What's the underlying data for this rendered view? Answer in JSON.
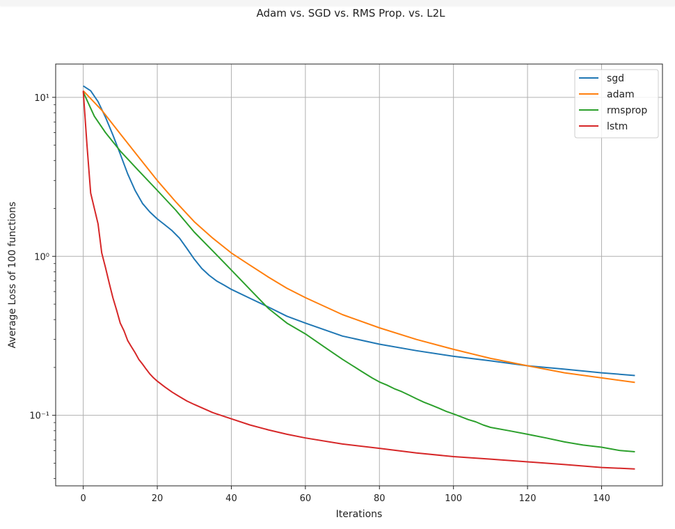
{
  "title": "Adam vs. SGD vs. RMS Prop. vs. L2L",
  "chart_data": {
    "type": "line",
    "title": "Adam vs. SGD vs. RMS Prop. vs. L2L",
    "xlabel": "Iterations",
    "ylabel": "Average Loss of 100 functions",
    "yscale": "log",
    "grid": true,
    "legend_position": "top-right",
    "xlim": [
      -7.45,
      156.45
    ],
    "ylim": [
      0.036,
      16.2
    ],
    "xticks": [
      0,
      20,
      40,
      60,
      80,
      100,
      120,
      140
    ],
    "yticks": [
      {
        "value": 10,
        "label": "10¹"
      },
      {
        "value": 1,
        "label": "10⁰"
      },
      {
        "value": 0.1,
        "label": "10⁻¹"
      }
    ],
    "series": [
      {
        "name": "sgd",
        "color": "#1f77b4",
        "points": [
          [
            0,
            11.8
          ],
          [
            2,
            11.0
          ],
          [
            4,
            9.4
          ],
          [
            6,
            7.5
          ],
          [
            8,
            5.8
          ],
          [
            10,
            4.4
          ],
          [
            12,
            3.3
          ],
          [
            14,
            2.6
          ],
          [
            16,
            2.15
          ],
          [
            18,
            1.9
          ],
          [
            20,
            1.72
          ],
          [
            22,
            1.58
          ],
          [
            24,
            1.45
          ],
          [
            26,
            1.3
          ],
          [
            28,
            1.12
          ],
          [
            30,
            0.96
          ],
          [
            32,
            0.84
          ],
          [
            34,
            0.76
          ],
          [
            36,
            0.7
          ],
          [
            38,
            0.66
          ],
          [
            40,
            0.62
          ],
          [
            45,
            0.545
          ],
          [
            50,
            0.48
          ],
          [
            55,
            0.42
          ],
          [
            60,
            0.38
          ],
          [
            70,
            0.315
          ],
          [
            80,
            0.28
          ],
          [
            90,
            0.255
          ],
          [
            100,
            0.235
          ],
          [
            110,
            0.22
          ],
          [
            120,
            0.205
          ],
          [
            130,
            0.195
          ],
          [
            140,
            0.185
          ],
          [
            149,
            0.178
          ]
        ]
      },
      {
        "name": "adam",
        "color": "#ff7f0e",
        "points": [
          [
            0,
            11.0
          ],
          [
            5,
            8.3
          ],
          [
            10,
            5.9
          ],
          [
            15,
            4.2
          ],
          [
            20,
            3.0
          ],
          [
            25,
            2.2
          ],
          [
            30,
            1.65
          ],
          [
            35,
            1.3
          ],
          [
            40,
            1.05
          ],
          [
            45,
            0.88
          ],
          [
            50,
            0.74
          ],
          [
            55,
            0.63
          ],
          [
            60,
            0.55
          ],
          [
            70,
            0.43
          ],
          [
            80,
            0.355
          ],
          [
            90,
            0.3
          ],
          [
            100,
            0.26
          ],
          [
            110,
            0.228
          ],
          [
            120,
            0.205
          ],
          [
            130,
            0.185
          ],
          [
            140,
            0.172
          ],
          [
            149,
            0.161
          ]
        ]
      },
      {
        "name": "rmsprop",
        "color": "#2ca02c",
        "points": [
          [
            0,
            10.8
          ],
          [
            3,
            7.6
          ],
          [
            6,
            6.0
          ],
          [
            10,
            4.6
          ],
          [
            15,
            3.45
          ],
          [
            20,
            2.6
          ],
          [
            25,
            1.95
          ],
          [
            30,
            1.42
          ],
          [
            35,
            1.08
          ],
          [
            40,
            0.82
          ],
          [
            45,
            0.62
          ],
          [
            50,
            0.47
          ],
          [
            55,
            0.38
          ],
          [
            60,
            0.325
          ],
          [
            65,
            0.27
          ],
          [
            70,
            0.225
          ],
          [
            75,
            0.19
          ],
          [
            78,
            0.172
          ],
          [
            80,
            0.162
          ],
          [
            82,
            0.155
          ],
          [
            84,
            0.147
          ],
          [
            86,
            0.141
          ],
          [
            88,
            0.134
          ],
          [
            90,
            0.127
          ],
          [
            92,
            0.121
          ],
          [
            94,
            0.116
          ],
          [
            96,
            0.111
          ],
          [
            98,
            0.106
          ],
          [
            100,
            0.102
          ],
          [
            102,
            0.098
          ],
          [
            104,
            0.094
          ],
          [
            106,
            0.091
          ],
          [
            108,
            0.087
          ],
          [
            110,
            0.084
          ],
          [
            115,
            0.08
          ],
          [
            120,
            0.076
          ],
          [
            125,
            0.072
          ],
          [
            130,
            0.068
          ],
          [
            135,
            0.065
          ],
          [
            140,
            0.063
          ],
          [
            145,
            0.06
          ],
          [
            149,
            0.059
          ]
        ]
      },
      {
        "name": "lstm",
        "color": "#d62728",
        "points": [
          [
            0,
            11.0
          ],
          [
            1,
            5.0
          ],
          [
            2,
            2.5
          ],
          [
            3,
            2.0
          ],
          [
            4,
            1.6
          ],
          [
            5,
            1.05
          ],
          [
            6,
            0.85
          ],
          [
            7,
            0.68
          ],
          [
            8,
            0.55
          ],
          [
            9,
            0.46
          ],
          [
            10,
            0.38
          ],
          [
            11,
            0.34
          ],
          [
            12,
            0.295
          ],
          [
            13,
            0.27
          ],
          [
            14,
            0.248
          ],
          [
            15,
            0.225
          ],
          [
            16,
            0.21
          ],
          [
            17,
            0.195
          ],
          [
            18,
            0.182
          ],
          [
            19,
            0.172
          ],
          [
            20,
            0.164
          ],
          [
            22,
            0.151
          ],
          [
            24,
            0.14
          ],
          [
            26,
            0.131
          ],
          [
            28,
            0.123
          ],
          [
            30,
            0.117
          ],
          [
            35,
            0.104
          ],
          [
            40,
            0.095
          ],
          [
            45,
            0.087
          ],
          [
            50,
            0.081
          ],
          [
            55,
            0.076
          ],
          [
            60,
            0.072
          ],
          [
            70,
            0.066
          ],
          [
            80,
            0.062
          ],
          [
            90,
            0.058
          ],
          [
            100,
            0.055
          ],
          [
            110,
            0.053
          ],
          [
            120,
            0.051
          ],
          [
            130,
            0.049
          ],
          [
            140,
            0.047
          ],
          [
            149,
            0.046
          ]
        ]
      }
    ]
  }
}
